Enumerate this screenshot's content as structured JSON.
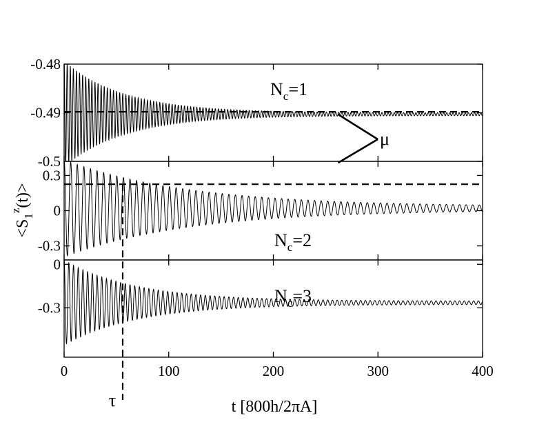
{
  "chart_data": {
    "type": "line",
    "xlabel": "t [800h/2πA]",
    "ylabel": "<S1z(t)>",
    "ylabel_parts": {
      "base": "<S",
      "sub": "1",
      "sup": "z",
      "tail": "(t)>"
    },
    "xlim": [
      0,
      400
    ],
    "x_ticks": [
      0,
      100,
      200,
      300,
      400
    ],
    "x_tick_labels": [
      "0",
      "100",
      "200",
      "300",
      "400"
    ],
    "panels": [
      {
        "name": "Nc=1",
        "label_main": "N",
        "label_sub": "c",
        "label_tail": "=1",
        "ylim": [
          -0.5,
          -0.48
        ],
        "y_ticks": [
          -0.48,
          -0.49,
          -0.5
        ],
        "y_tick_labels": [
          "-0.48",
          "-0.49",
          "-0.5"
        ],
        "series": {
          "baseline": -0.4903,
          "amplitude0": 0.0106,
          "decay": 0.0175,
          "amp_floor": 0.0003,
          "period": 2.95,
          "x_start": 0,
          "x_end": 400
        },
        "reference": {
          "y": -0.4898,
          "x_start": 0,
          "x_end": 400
        }
      },
      {
        "name": "Nc=2",
        "label_main": "N",
        "label_sub": "c",
        "label_tail": "=2",
        "ylim": [
          -0.42,
          0.42
        ],
        "y_ticks": [
          0.3,
          0,
          -0.3
        ],
        "y_tick_labels": [
          "0.3",
          "0",
          "-0.3"
        ],
        "series": {
          "baseline": 0.02,
          "amplitude0": 0.4,
          "decay": 0.0085,
          "amp_floor": 0.015,
          "period": 6.3,
          "x_start": 0,
          "x_end": 400
        },
        "reference": {
          "y": 0.225,
          "x_start": 0,
          "x_end": 400
        }
      },
      {
        "name": "Nc=3",
        "label_main": "N",
        "label_sub": "c",
        "label_tail": "=3",
        "ylim": [
          -0.64,
          0.03
        ],
        "y_ticks": [
          0,
          -0.3
        ],
        "y_tick_labels": [
          "0",
          "-0.3"
        ],
        "series": {
          "baseline": -0.265,
          "amplitude0": 0.28,
          "decay": 0.0145,
          "amp_floor": 0.012,
          "period": 4.5,
          "x_start": 0,
          "x_end": 400
        }
      }
    ],
    "annotations": {
      "tau_label": "τ",
      "tau_x": 56,
      "mu_label": "μ"
    },
    "grid": false,
    "legend": "none"
  }
}
